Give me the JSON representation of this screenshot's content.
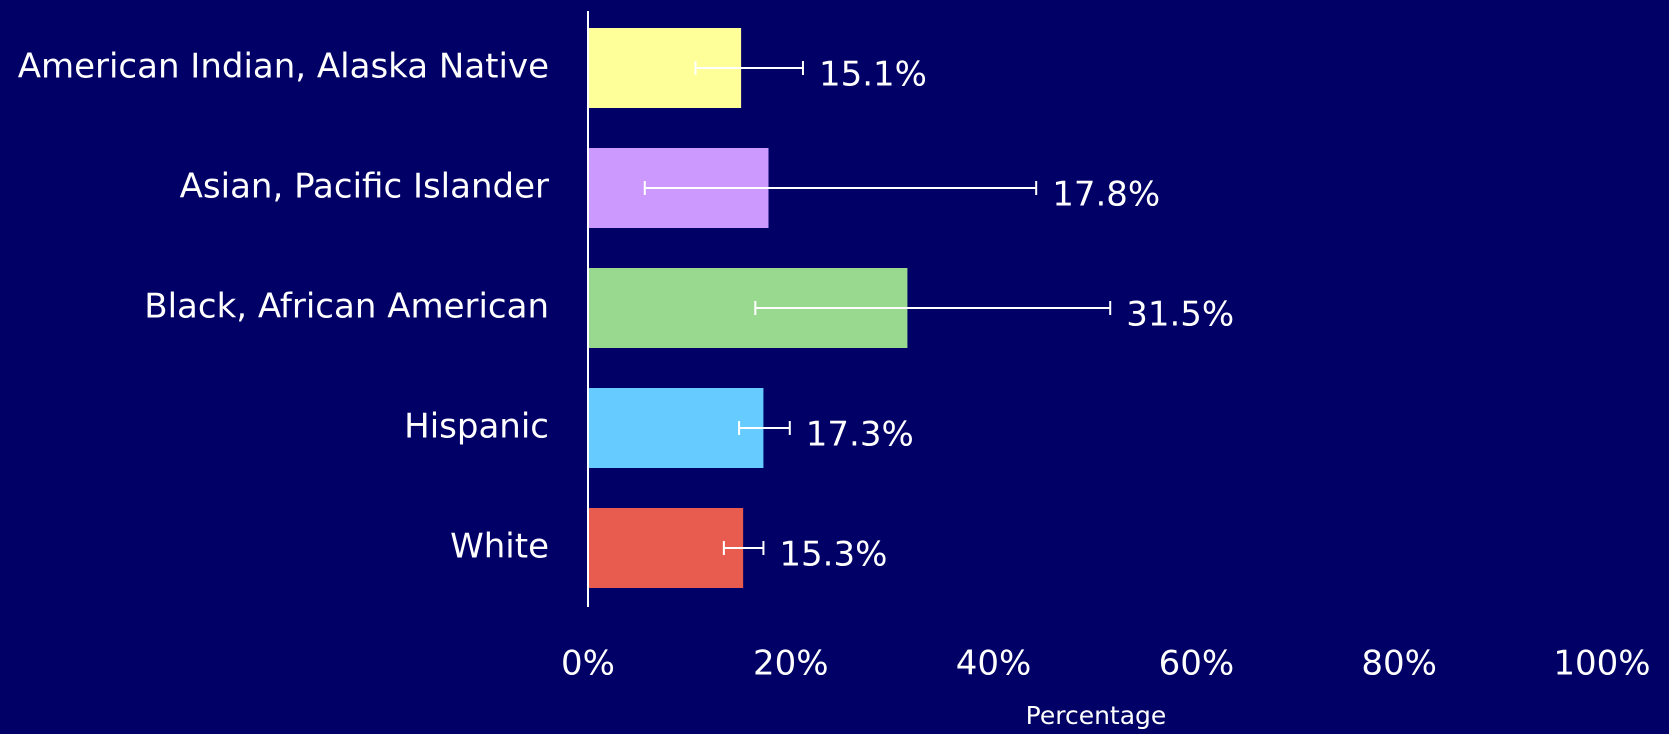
{
  "chart_data": {
    "type": "bar",
    "orientation": "horizontal",
    "categories": [
      "American Indian, Alaska Native",
      "Asian, Pacific Islander",
      "Black, African American",
      "Hispanic",
      "White"
    ],
    "values": [
      15.1,
      17.8,
      31.5,
      17.3,
      15.3
    ],
    "value_labels": [
      "15.1%",
      "17.8%",
      "31.5%",
      "17.3%",
      "15.3%"
    ],
    "ci_low": [
      10.6,
      5.6,
      16.5,
      14.9,
      13.4
    ],
    "ci_high": [
      21.2,
      44.2,
      51.5,
      19.9,
      17.3
    ],
    "colors": [
      "#ffff99",
      "#cc99ff",
      "#99d98f",
      "#66ccff",
      "#e85c50"
    ],
    "xlim": [
      0,
      100
    ],
    "xticks": [
      {
        "value": 0,
        "label": "0%"
      },
      {
        "value": 20,
        "label": "20%"
      },
      {
        "value": 40,
        "label": "40%"
      },
      {
        "value": 60,
        "label": "60%"
      },
      {
        "value": 80,
        "label": "80%"
      },
      {
        "value": 100,
        "label": "100%"
      }
    ],
    "xlabel": "Percentage",
    "grid": false
  }
}
